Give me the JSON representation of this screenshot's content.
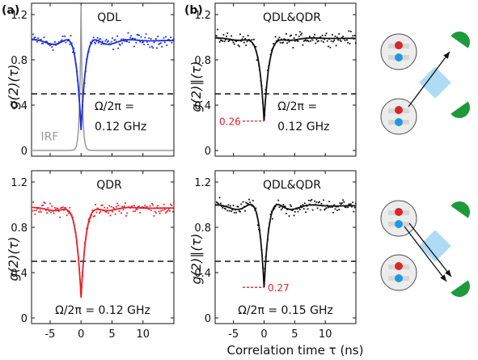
{
  "panel_labels": [
    "(a)",
    "(b)"
  ],
  "xlabel": "Correlation time τ (ns)",
  "ylabel_left": "g(2)(τ)",
  "ylabel_right": "g(2)∥(τ)",
  "colors": {
    "blue": "#1f2fd6",
    "red": "#e8202a",
    "black": "#111111",
    "gray": "#999999",
    "cyan": "#9fd6f2",
    "green": "#1f9a3a",
    "dot_red": "#d8262a",
    "dot_blue": "#1e9be0",
    "annot_red": "#e8202a"
  },
  "chart_data": [
    {
      "type": "line+scatter",
      "panel": "a-top",
      "title": "QDL",
      "series_color": "blue",
      "xlim": [
        -8,
        15
      ],
      "ylim": [
        -0.05,
        1.3
      ],
      "xticks": [
        -5,
        0,
        5,
        10
      ],
      "yticks": [
        0,
        0.4,
        0.8,
        1.2
      ],
      "ytick_labels": [
        "0",
        "0.4",
        "0.8",
        "1.2"
      ],
      "dashed_y": 0.5,
      "min_g": 0.18,
      "base": 0.97,
      "wing_peak": 1.08,
      "irf": {
        "label": "IRF",
        "peak": 1.28,
        "color": "gray"
      },
      "annotation": [
        "Ω/2π =",
        "0.12 GHz"
      ]
    },
    {
      "type": "line+scatter",
      "panel": "b-top",
      "title": "QDL&QDR",
      "series_color": "black",
      "xlim": [
        -8,
        15
      ],
      "ylim": [
        -0.05,
        1.3
      ],
      "xticks": [
        -5,
        0,
        5,
        10
      ],
      "yticks": [
        0,
        0.4,
        0.8,
        1.2
      ],
      "ytick_labels": [
        "0",
        "0.4",
        "0.8",
        "1.2"
      ],
      "dashed_y": 0.5,
      "min_g": 0.26,
      "base": 0.99,
      "wing_peak": 1.04,
      "min_label": "0.26",
      "annotation": [
        "Ω/2π =",
        "0.12 GHz"
      ]
    },
    {
      "type": "line+scatter",
      "panel": "a-bottom",
      "title": "QDR",
      "series_color": "red",
      "xlim": [
        -8,
        15
      ],
      "ylim": [
        -0.05,
        1.3
      ],
      "xticks": [
        -5,
        0,
        5,
        10
      ],
      "xtick_labels": [
        "-5",
        "0",
        "5",
        "10"
      ],
      "yticks": [
        0,
        0.4,
        0.8,
        1.2
      ],
      "ytick_labels": [
        "0",
        "0.4",
        "0.8",
        "1.2"
      ],
      "dashed_y": 0.5,
      "min_g": 0.18,
      "base": 0.97,
      "wing_peak": 1.04,
      "annotation": [
        "Ω/2π = 0.12 GHz"
      ]
    },
    {
      "type": "line+scatter",
      "panel": "b-bottom",
      "title": "QDL&QDR",
      "series_color": "black",
      "xlim": [
        -8,
        15
      ],
      "ylim": [
        -0.05,
        1.3
      ],
      "xticks": [
        -5,
        0,
        5,
        10
      ],
      "xtick_labels": [
        "-5",
        "0",
        "5",
        "10"
      ],
      "yticks": [
        0,
        0.4,
        0.8,
        1.2
      ],
      "ytick_labels": [
        "0",
        "0.4",
        "0.8",
        "1.2"
      ],
      "dashed_y": 0.5,
      "min_g": 0.27,
      "base": 0.99,
      "wing_peak": 1.1,
      "min_label": "0.27",
      "annotation": [
        "Ω/2π = 0.15 GHz"
      ]
    }
  ]
}
